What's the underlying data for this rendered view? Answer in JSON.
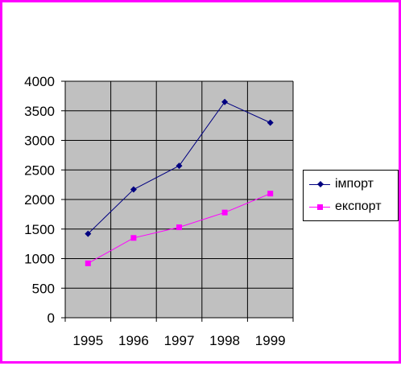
{
  "colors": {
    "border": "#FF00FF",
    "plot_area": "#C0C0C0",
    "grid": "#000000"
  },
  "chart_data": {
    "type": "line",
    "title": "",
    "xlabel": "",
    "ylabel": "",
    "categories": [
      "1995",
      "1996",
      "1997",
      "1998",
      "1999"
    ],
    "ylim": [
      0,
      4000
    ],
    "yticks": [
      "0",
      "500",
      "1000",
      "1500",
      "2000",
      "2500",
      "3000",
      "3500",
      "4000"
    ],
    "grid": true,
    "legend_position": "right",
    "series": [
      {
        "name": "імпорт",
        "values": [
          1420,
          2170,
          2570,
          3650,
          3300
        ],
        "color": "#000080",
        "marker": "diamond"
      },
      {
        "name": "експорт",
        "values": [
          920,
          1350,
          1530,
          1780,
          2100
        ],
        "color": "#FF00FF",
        "marker": "square"
      }
    ]
  }
}
